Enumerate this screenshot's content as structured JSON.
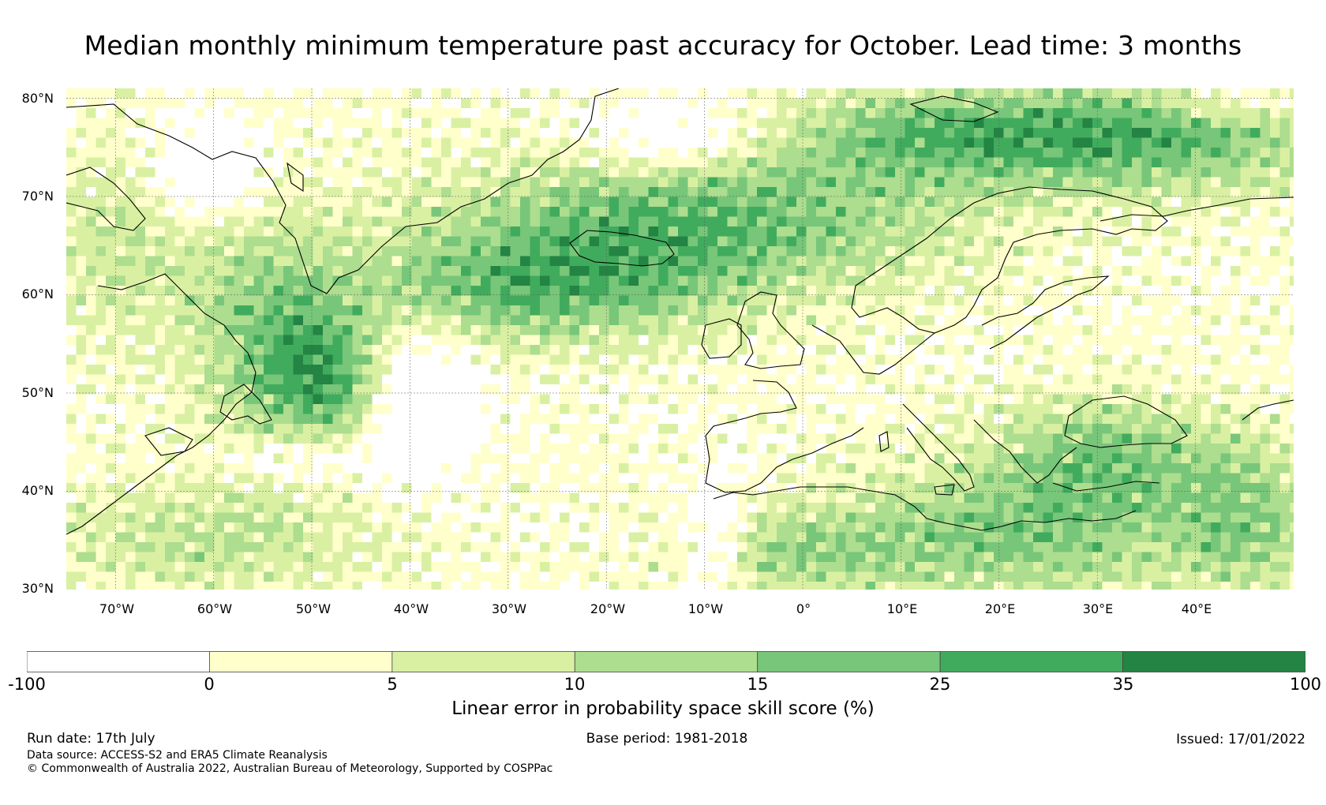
{
  "title": "Median monthly minimum temperature past accuracy for October. Lead time: 3 months",
  "map": {
    "lat_labels": [
      "80°N",
      "70°N",
      "60°N",
      "50°N",
      "40°N",
      "30°N"
    ],
    "lon_labels": [
      "70°W",
      "60°W",
      "50°W",
      "40°W",
      "30°W",
      "20°W",
      "10°W",
      "0°",
      "10°E",
      "20°E",
      "30°E",
      "40°E"
    ],
    "extent": {
      "lon": [
        -75,
        50
      ],
      "lat": [
        30,
        81
      ]
    },
    "grid": true
  },
  "colorbar": {
    "ticks": [
      "-100",
      "0",
      "5",
      "10",
      "15",
      "25",
      "35",
      "100"
    ],
    "colors": [
      "#ffffff",
      "#ffffcc",
      "#d9f0a3",
      "#addd8e",
      "#78c679",
      "#41ab5d",
      "#238443"
    ],
    "label": "Linear error in probability space skill score (%)"
  },
  "footer": {
    "run_date": "Run date: 17th July",
    "base_period": "Base period: 1981-2018",
    "issued": "Issued: 17/01/2022",
    "data_source": "Data source: ACCESS-S2 and ERA5 Climate Reanalysis",
    "copyright": "© Commonwealth of Australia 2022, Australian Bureau of Meteorology, Supported by COSPPac"
  }
}
